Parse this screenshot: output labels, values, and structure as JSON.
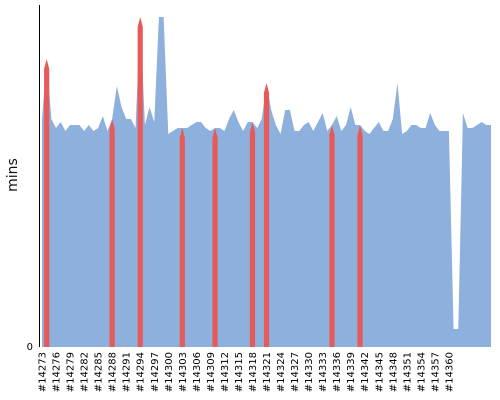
{
  "chart_data": {
    "type": "area",
    "title": "",
    "xlabel": "",
    "ylabel": "mins",
    "ylim": [
      0,
      100
    ],
    "y_ticks": [
      0
    ],
    "grid": false,
    "legend": "none",
    "colors": {
      "normal": "#8eb0dd",
      "highlight": "#e75a5a",
      "axis": "#000000",
      "background": "#ffffff"
    },
    "x_ticks": [
      "#14273",
      "#14276",
      "#14279",
      "#14282",
      "#14285",
      "#14288",
      "#14291",
      "#14294",
      "#14297",
      "#14300",
      "#14303",
      "#14306",
      "#14309",
      "#14312",
      "#14315",
      "#14318",
      "#14321",
      "#14324",
      "#14327",
      "#14330",
      "#14333",
      "#14336",
      "#14339",
      "#14342",
      "#14345",
      "#14348",
      "#14351",
      "#14354",
      "#14357",
      "#14360"
    ],
    "series": [
      {
        "values": [
          76,
          96,
          76,
          73,
          75,
          72,
          74,
          74,
          74,
          72,
          74,
          72,
          73,
          77,
          72,
          76,
          87,
          80,
          76,
          76,
          73,
          110,
          74,
          80,
          75,
          110,
          110,
          71,
          72,
          73,
          73,
          73,
          74,
          75,
          75,
          73,
          72,
          73,
          73,
          72,
          76,
          79,
          75,
          72,
          75,
          75,
          73,
          76,
          88,
          79,
          74,
          71,
          79,
          79,
          72,
          72,
          74,
          75,
          72,
          75,
          78,
          72,
          74,
          77,
          72,
          74,
          80,
          74,
          74,
          72,
          71,
          73,
          75,
          72,
          72,
          76,
          88,
          71,
          72,
          74,
          74,
          73,
          73,
          78,
          74,
          72,
          72,
          72,
          6,
          6,
          78,
          73,
          73,
          74,
          75,
          74,
          74
        ],
        "highlighted_builds": [
          "#14274",
          "#14288",
          "#14294",
          "#14303",
          "#14310",
          "#14318",
          "#14321",
          "#14335",
          "#14341"
        ]
      }
    ]
  }
}
